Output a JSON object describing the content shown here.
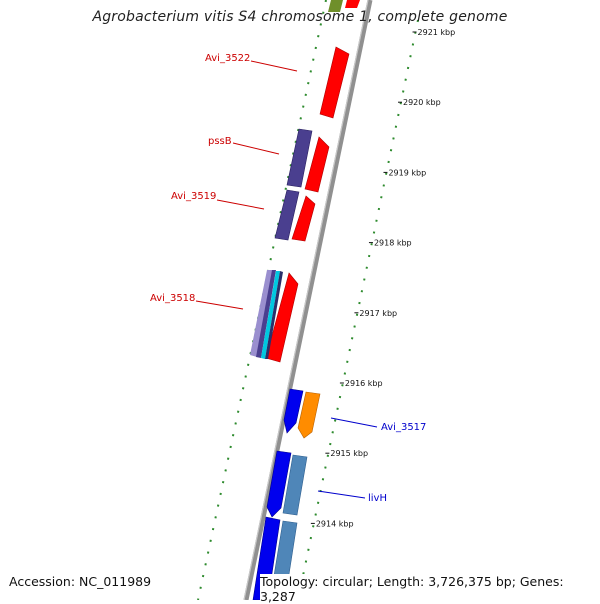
{
  "title": "Agrobacterium vitis S4 chromosome 1, complete genome",
  "accession": "Accession: NC_011989",
  "summary": "Topology: circular; Length: 3,726,375 bp; Genes: 3,287",
  "ticks": [
    {
      "label": "2921 kbp",
      "pos": 2921
    },
    {
      "label": "2920 kbp",
      "pos": 2920
    },
    {
      "label": "2919 kbp",
      "pos": 2919
    },
    {
      "label": "2918 kbp",
      "pos": 2918
    },
    {
      "label": "2917 kbp",
      "pos": 2917
    },
    {
      "label": "2916 kbp",
      "pos": 2916
    },
    {
      "label": "2915 kbp",
      "pos": 2915
    },
    {
      "label": "2914 kbp",
      "pos": 2914
    }
  ],
  "gene_labels": [
    {
      "name": "Avi_3522",
      "strand": "forward"
    },
    {
      "name": "pssB",
      "strand": "forward"
    },
    {
      "name": "Avi_3519",
      "strand": "forward"
    },
    {
      "name": "Avi_3518",
      "strand": "forward"
    },
    {
      "name": "Avi_3517",
      "strand": "reverse"
    },
    {
      "name": "livH",
      "strand": "reverse"
    }
  ],
  "colors": {
    "cds_red": "#ff0000",
    "cds_purple": "#4a3f8f",
    "cds_blue": "#0000ee",
    "cds_orange": "#ff8c00",
    "cds_steel": "#4f86b8",
    "cds_cyan": "#00c8e0",
    "backbone": "#888888",
    "dot_track": "#228b22",
    "label_forward": "#cc0000",
    "label_reverse": "#0000cc"
  }
}
